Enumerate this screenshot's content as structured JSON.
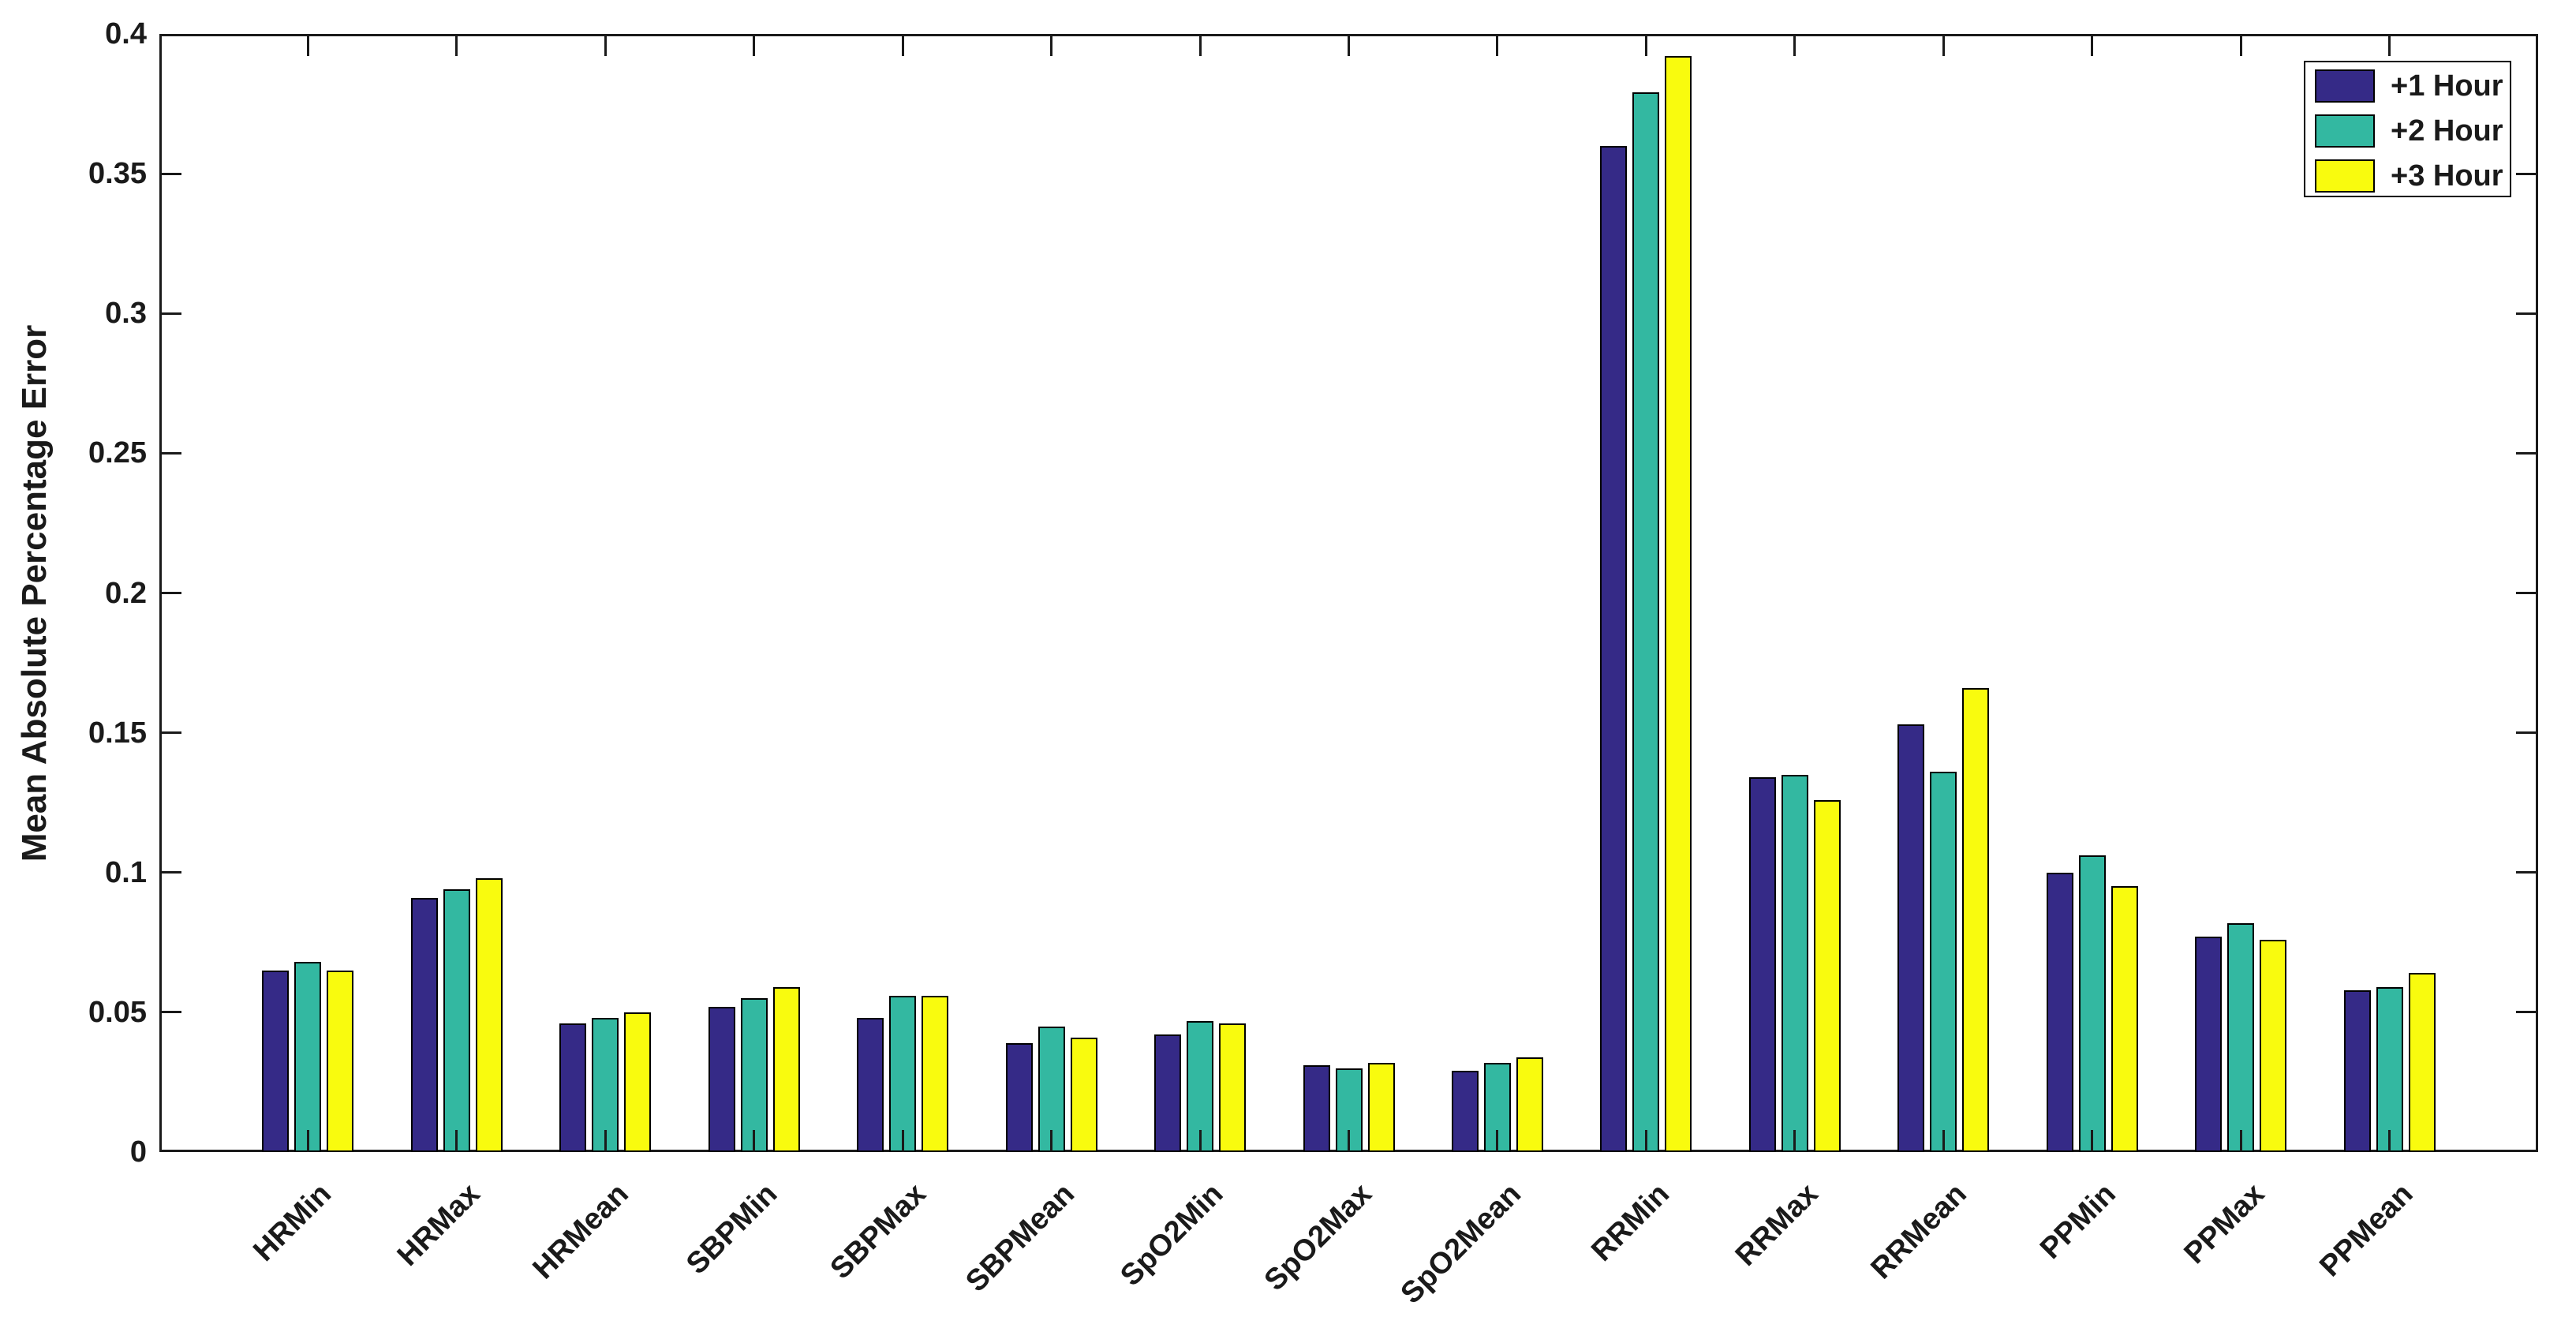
{
  "figure": {
    "background": "#ffffff",
    "axis_color": "#1a1a1a",
    "bar_edge_color": "#000000"
  },
  "chart_data": {
    "type": "bar",
    "title": "",
    "xlabel": "",
    "ylabel": "Mean Absolute Percentage Error",
    "ylim": [
      0,
      0.4
    ],
    "ytick_step": 0.05,
    "ytick_labels": [
      "0",
      "0.05",
      "0.1",
      "0.15",
      "0.2",
      "0.25",
      "0.3",
      "0.35",
      "0.4"
    ],
    "grid": false,
    "legend_position": "top-right",
    "categories": [
      "HRMin",
      "HRMax",
      "HRMean",
      "SBPMin",
      "SBPMax",
      "SBPMean",
      "SpO2Min",
      "SpO2Max",
      "SpO2Mean",
      "RRMin",
      "RRMax",
      "RRMean",
      "PPMin",
      "PPMax",
      "PPMean"
    ],
    "series": [
      {
        "name": "+1 Hour",
        "color": "#352A87",
        "values": [
          0.065,
          0.091,
          0.046,
          0.052,
          0.048,
          0.039,
          0.042,
          0.031,
          0.029,
          0.36,
          0.134,
          0.153,
          0.1,
          0.077,
          0.058
        ]
      },
      {
        "name": "+2 Hour",
        "color": "#33B8A1",
        "values": [
          0.068,
          0.094,
          0.048,
          0.055,
          0.056,
          0.045,
          0.047,
          0.03,
          0.032,
          0.379,
          0.135,
          0.136,
          0.106,
          0.082,
          0.059
        ]
      },
      {
        "name": "+3 Hour",
        "color": "#F9FB0E",
        "values": [
          0.065,
          0.098,
          0.05,
          0.059,
          0.056,
          0.041,
          0.046,
          0.032,
          0.034,
          0.392,
          0.126,
          0.166,
          0.095,
          0.076,
          0.064
        ]
      }
    ]
  }
}
